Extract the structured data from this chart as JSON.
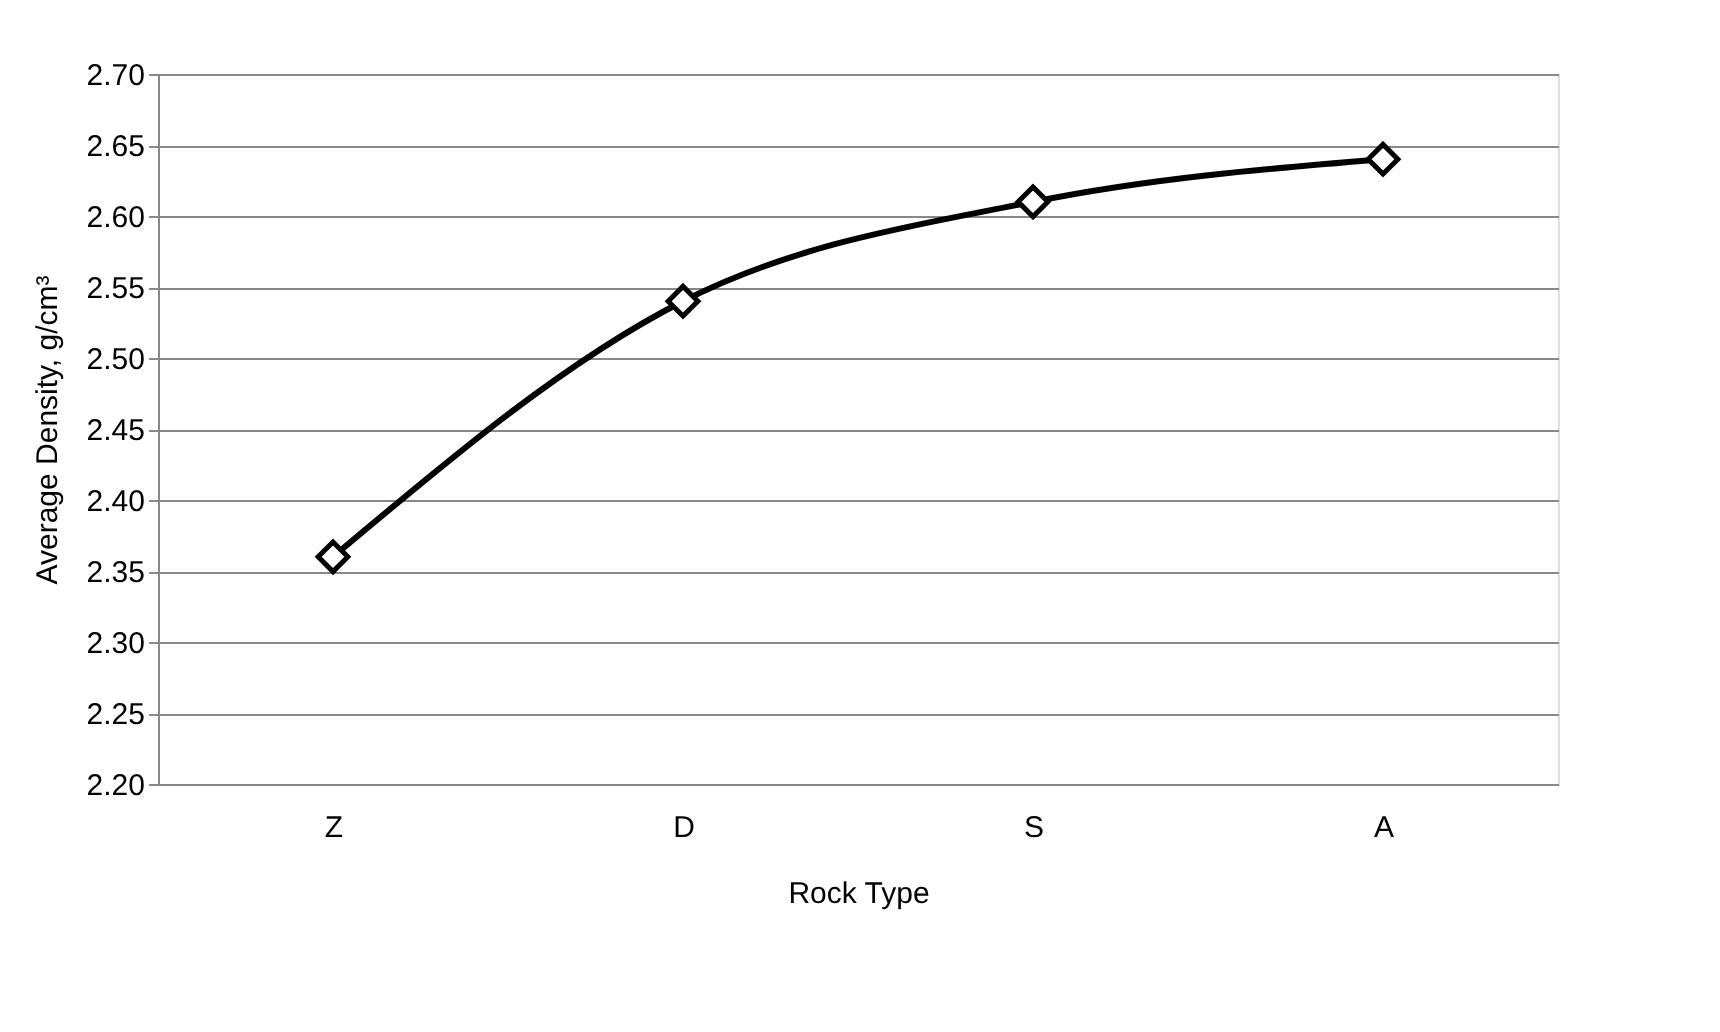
{
  "chart_data": {
    "type": "line",
    "xlabel": "Rock Type",
    "ylabel": "Average Density, g/cm³",
    "categories": [
      "Z",
      "D",
      "S",
      "A"
    ],
    "series": [
      {
        "color": "#000000",
        "values": [
          2.36,
          2.54,
          2.61,
          2.64
        ]
      }
    ],
    "ylim": [
      2.2,
      2.7
    ],
    "yticks": [
      {
        "value": 2.2,
        "label": "2.20"
      },
      {
        "value": 2.25,
        "label": "2.25"
      },
      {
        "value": 2.3,
        "label": "2.30"
      },
      {
        "value": 2.35,
        "label": "2.35"
      },
      {
        "value": 2.4,
        "label": "2.40"
      },
      {
        "value": 2.45,
        "label": "2.45"
      },
      {
        "value": 2.5,
        "label": "2.50"
      },
      {
        "value": 2.55,
        "label": "2.55"
      },
      {
        "value": 2.6,
        "label": "2.60"
      },
      {
        "value": 2.65,
        "label": "2.65"
      },
      {
        "value": 2.7,
        "label": "2.70"
      }
    ],
    "grid": "y",
    "marker": "diamond",
    "line_style": "solid",
    "legend": false
  }
}
